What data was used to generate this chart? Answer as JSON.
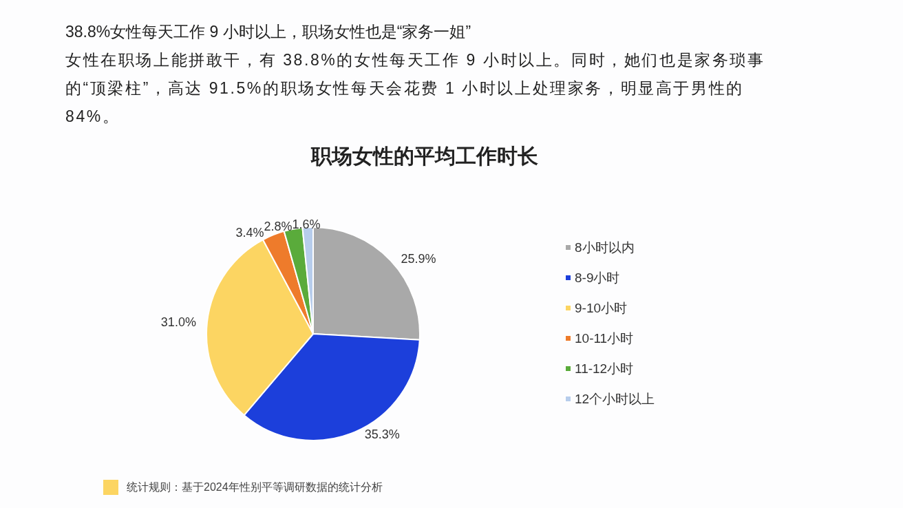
{
  "chart_data": {
    "type": "pie",
    "title": "职场女性的平均工作时长",
    "categories": [
      "8小时以内",
      "8-9小时",
      "9-10小时",
      "10-11小时",
      "11-12小时",
      "12个小时以上"
    ],
    "values": [
      25.9,
      35.3,
      31.0,
      3.4,
      2.8,
      1.6
    ],
    "value_labels": [
      "25.9%",
      "35.3%",
      "31.0%",
      "3.4%",
      "2.8%",
      "1.6%"
    ],
    "colors": [
      "#a9a9a9",
      "#1c3fdb",
      "#fcd562",
      "#ee7b2b",
      "#5aab3b",
      "#b7cdec"
    ],
    "legend": "right",
    "annotations": [
      "38.8%女性每天工作 9 小时以上，职场女性也是“家务一姐”",
      "女性在职场上能拼敢干，有 38.8%的女性每天工作 9 小时以上。同时，她们也是家务琐事的“顶梁柱”，高达 91.5%的职场女性每天会花费 1 小时以上处理家务，明显高于男性的84%。",
      "统计规则：基于2024年性别平等调研数据的统计分析"
    ]
  }
}
